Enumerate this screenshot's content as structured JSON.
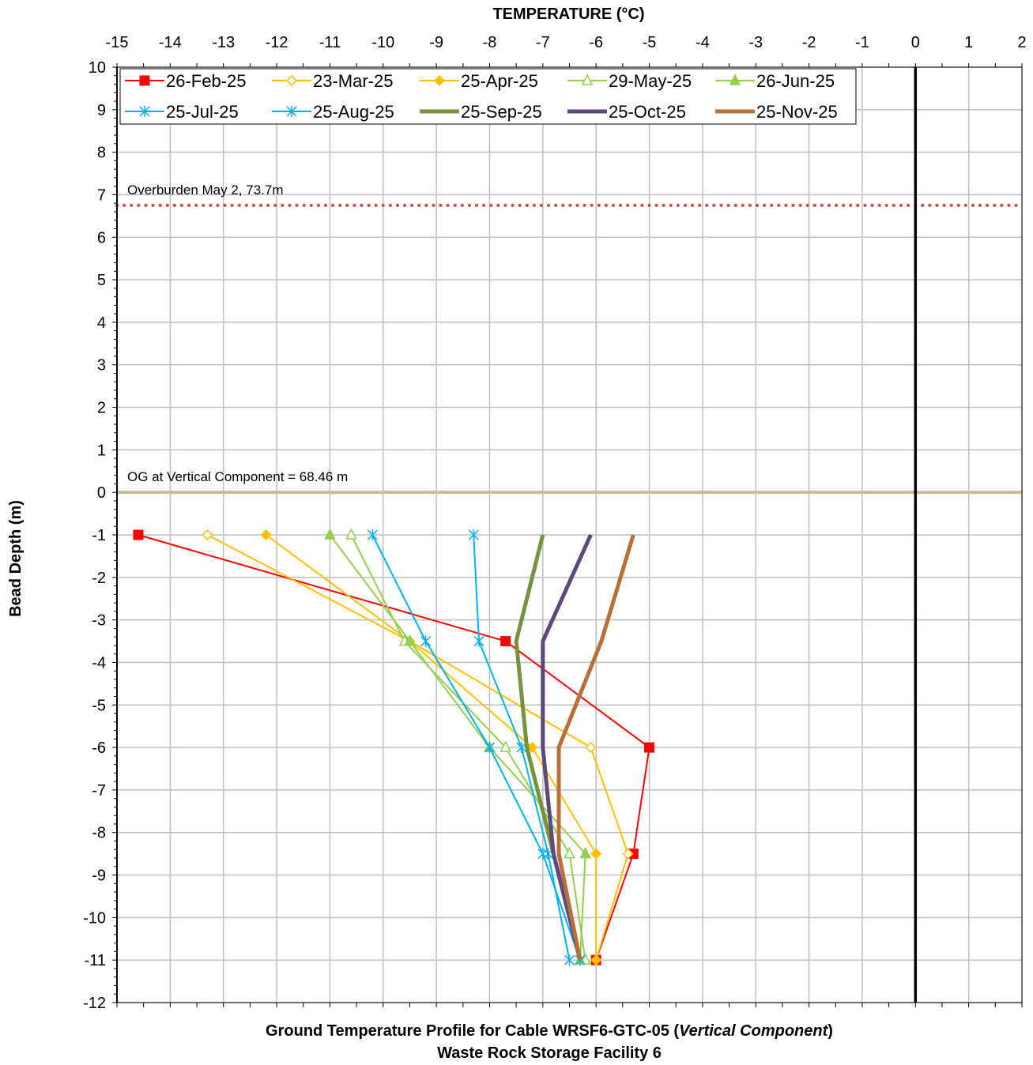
{
  "chart_data": {
    "type": "line",
    "x_axis": {
      "label": "TEMPERATURE (°C)",
      "position": "top",
      "range": [
        -15,
        2
      ],
      "ticks": [
        -15,
        -14,
        -13,
        -12,
        -11,
        -10,
        -9,
        -8,
        -7,
        -6,
        -5,
        -4,
        -3,
        -2,
        -1,
        0,
        1,
        2
      ]
    },
    "y_axis": {
      "label": "Bead Depth (m)",
      "range": [
        -12,
        10
      ],
      "ticks": [
        10,
        9,
        8,
        7,
        6,
        5,
        4,
        3,
        2,
        1,
        0,
        -1,
        -2,
        -3,
        -4,
        -5,
        -6,
        -7,
        -8,
        -9,
        -10,
        -11,
        -12
      ]
    },
    "grid": true,
    "legend_position": "top",
    "reference_lines": [
      {
        "type": "horizontal",
        "y": 6.75,
        "label": "Overburden May 2, 73.7m",
        "color": "#c0504d",
        "style": "dotted"
      },
      {
        "type": "horizontal",
        "y": 0,
        "label": "OG at Vertical Component = 68.46 m",
        "color": "#c4bd97",
        "style": "solid"
      },
      {
        "type": "vertical",
        "x": 0,
        "label": "",
        "color": "#000000",
        "style": "solid"
      }
    ],
    "series": [
      {
        "name": "26-Feb-25",
        "color": "#ff0000",
        "marker": "square-filled",
        "width": 2,
        "points": [
          [
            -14.6,
            -1
          ],
          [
            -7.7,
            -3.5
          ],
          [
            -5,
            -6
          ],
          [
            -5.3,
            -8.5
          ],
          [
            -6,
            -11
          ]
        ]
      },
      {
        "name": "23-Mar-25",
        "color": "#ffc000",
        "marker": "diamond-open",
        "width": 2,
        "points": [
          [
            -13.3,
            -1
          ],
          [
            -9.5,
            -3.5
          ],
          [
            -6.1,
            -6
          ],
          [
            -5.4,
            -8.5
          ],
          [
            -6,
            -11
          ]
        ]
      },
      {
        "name": "25-Apr-25",
        "color": "#ffc000",
        "marker": "diamond-filled",
        "width": 2,
        "points": [
          [
            -12.2,
            -1
          ],
          [
            -9.5,
            -3.5
          ],
          [
            -7.2,
            -6
          ],
          [
            -6,
            -8.5
          ],
          [
            -6,
            -11
          ]
        ]
      },
      {
        "name": "29-May-25",
        "color": "#92d050",
        "marker": "triangle-open",
        "width": 2,
        "points": [
          [
            -10.6,
            -1
          ],
          [
            -9.6,
            -3.5
          ],
          [
            -7.7,
            -6
          ],
          [
            -6.5,
            -8.5
          ],
          [
            -6.2,
            -11
          ]
        ]
      },
      {
        "name": "26-Jun-25",
        "color": "#92d050",
        "marker": "triangle-filled",
        "width": 2,
        "points": [
          [
            -11,
            -1
          ],
          [
            -9.5,
            -3.5
          ],
          [
            -8,
            -6
          ],
          [
            -6.2,
            -8.5
          ],
          [
            -6.3,
            -11
          ]
        ]
      },
      {
        "name": "25-Jul-25",
        "color": "#00b0f0",
        "marker": "asterisk",
        "width": 2,
        "points": [
          [
            -8.3,
            -1
          ],
          [
            -8.2,
            -3.5
          ],
          [
            -7.4,
            -6
          ],
          [
            -6.9,
            -8.5
          ],
          [
            -6.5,
            -11
          ]
        ]
      },
      {
        "name": "25-Aug-25",
        "color": "#00b0f0",
        "marker": "asterisk",
        "width": 2,
        "points": [
          [
            -10.2,
            -1
          ],
          [
            -9.2,
            -3.5
          ],
          [
            -8,
            -6
          ],
          [
            -7,
            -8.5
          ],
          [
            -6.3,
            -11
          ]
        ]
      },
      {
        "name": "25-Sep-25",
        "color": "#76923c",
        "marker": "none",
        "width": 5,
        "points": [
          [
            -7,
            -1
          ],
          [
            -7.5,
            -3.5
          ],
          [
            -7.3,
            -6
          ],
          [
            -6.8,
            -8.5
          ],
          [
            -6.3,
            -11
          ]
        ]
      },
      {
        "name": "25-Oct-25",
        "color": "#5f497a",
        "marker": "none",
        "width": 5,
        "points": [
          [
            -6.1,
            -1
          ],
          [
            -7,
            -3.5
          ],
          [
            -7,
            -6
          ],
          [
            -6.8,
            -8.5
          ],
          [
            -6.3,
            -11
          ]
        ]
      },
      {
        "name": "25-Nov-25",
        "color": "#b8703a",
        "marker": "none",
        "width": 5,
        "points": [
          [
            -5.3,
            -1
          ],
          [
            -5.9,
            -3.5
          ],
          [
            -6.7,
            -6
          ],
          [
            -6.7,
            -8.5
          ],
          [
            -6.3,
            -11
          ]
        ]
      }
    ],
    "caption_lines": [
      [
        "Ground Temperature Profile for Cable WRSF6-GTC-05 (",
        "Vertical Component",
        ")"
      ],
      [
        "Waste Rock Storage Facility 6"
      ]
    ]
  }
}
